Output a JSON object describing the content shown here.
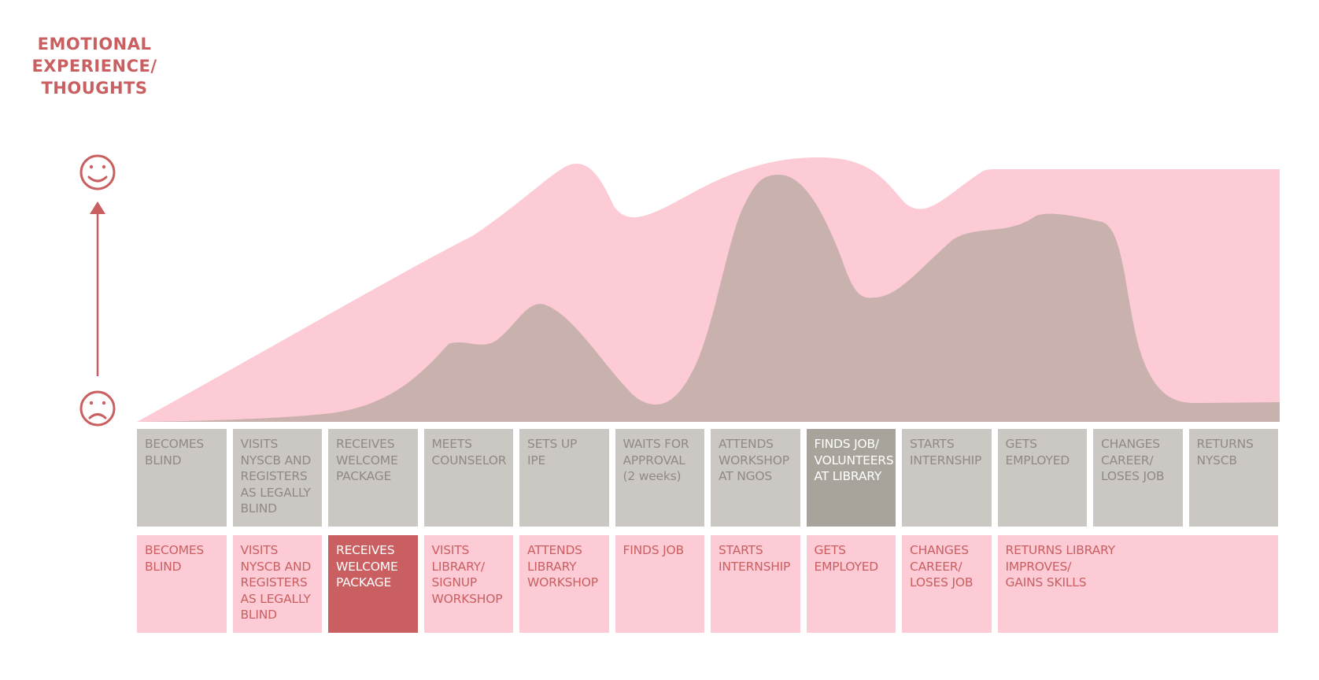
{
  "axis_title": [
    "EMOTIONAL",
    "EXPERIENCE/",
    "THOUGHTS"
  ],
  "icons": {
    "top": "smiley-face-icon",
    "bottom": "sad-face-icon",
    "arrow": "up-arrow-icon"
  },
  "colors": {
    "accent": "#c95f60",
    "pink_fill": "#fccbd6",
    "gray_fill": "#c9b2ae",
    "gray_cell": "#cbc7c2",
    "gray_cell_highlight": "#a8a49b",
    "gray_text": "#8f8a86"
  },
  "top_row": [
    {
      "text": "BECOMES\nBLIND",
      "highlight": false
    },
    {
      "text": "VISITS\nNYSCB AND\nREGISTERS\nAS LEGALLY\nBLIND",
      "highlight": false
    },
    {
      "text": "RECEIVES\nWELCOME\nPACKAGE",
      "highlight": false
    },
    {
      "text": "MEETS\nCOUNSELOR",
      "highlight": false
    },
    {
      "text": "SETS UP\nIPE",
      "highlight": false
    },
    {
      "text": "WAITS FOR\nAPPROVAL\n(2 weeks)",
      "highlight": false
    },
    {
      "text": "ATTENDS\nWORKSHOP\nAT NGOS",
      "highlight": false
    },
    {
      "text": "FINDS JOB/\nVOLUNTEERS\nAT LIBRARY",
      "highlight": true
    },
    {
      "text": "STARTS\nINTERNSHIP",
      "highlight": false
    },
    {
      "text": "GETS\nEMPLOYED",
      "highlight": false
    },
    {
      "text": "CHANGES\nCAREER/\nLOSES JOB",
      "highlight": false
    },
    {
      "text": "RETURNS\nNYSCB",
      "highlight": false
    }
  ],
  "bottom_row": [
    {
      "text": "BECOMES\nBLIND",
      "highlight": false,
      "span": 1
    },
    {
      "text": "VISITS\nNYSCB AND\nREGISTERS\nAS LEGALLY\nBLIND",
      "highlight": false,
      "span": 1
    },
    {
      "text": "RECEIVES\nWELCOME\nPACKAGE",
      "highlight": true,
      "span": 1
    },
    {
      "text": "VISITS\nLIBRARY/\nSIGNUP\nWORKSHOP",
      "highlight": false,
      "span": 1
    },
    {
      "text": "ATTENDS\nLIBRARY\nWORKSHOP",
      "highlight": false,
      "span": 1
    },
    {
      "text": "FINDS JOB",
      "highlight": false,
      "span": 1
    },
    {
      "text": "STARTS\nINTERNSHIP",
      "highlight": false,
      "span": 1
    },
    {
      "text": "GETS\nEMPLOYED",
      "highlight": false,
      "span": 1
    },
    {
      "text": "CHANGES\nCAREER/\nLOSES JOB",
      "highlight": false,
      "span": 1
    },
    {
      "text": "RETURNS LIBRARY\nIMPROVES/\nGAINS SKILLS",
      "highlight": false,
      "span": 3
    }
  ]
}
